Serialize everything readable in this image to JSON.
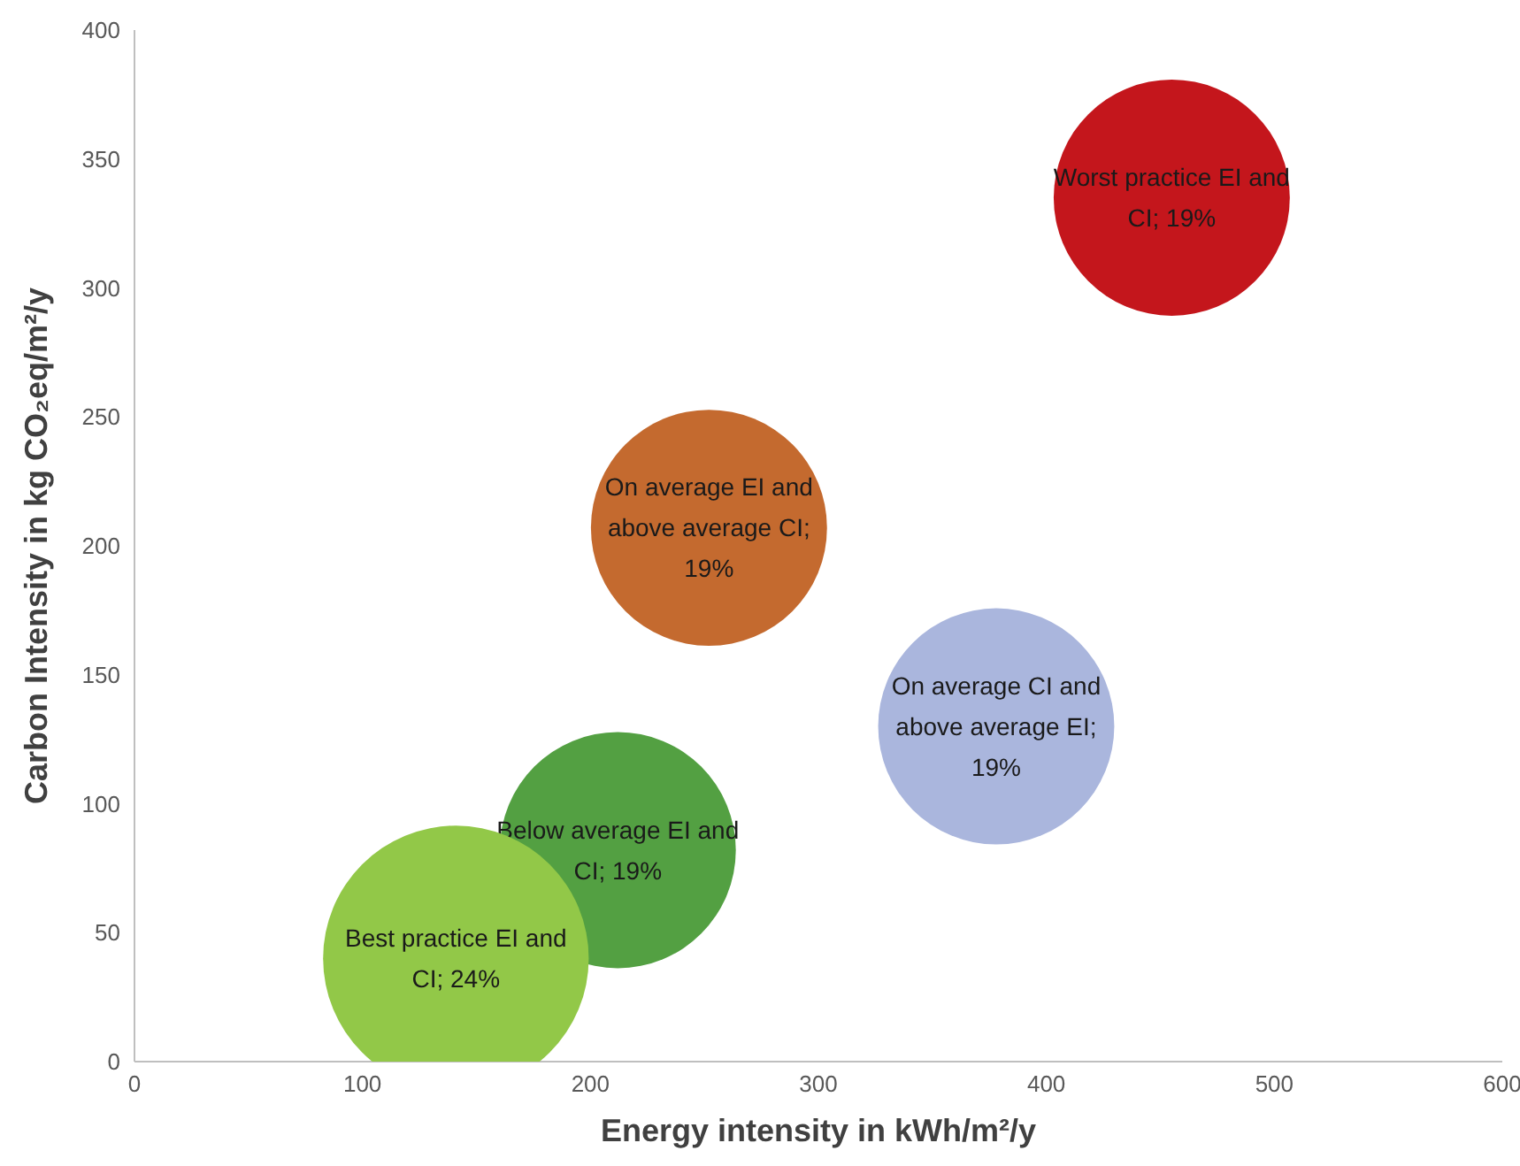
{
  "chart_data": {
    "type": "bubble",
    "xlabel": "Energy intensity in kWh/m²/y",
    "ylabel": "Carbon Intensity in kg CO₂eq/m²/y",
    "xlim": [
      0,
      600
    ],
    "xticks": [
      0,
      100,
      200,
      300,
      400,
      500,
      600
    ],
    "ylim": [
      0,
      400
    ],
    "yticks": [
      0,
      50,
      100,
      150,
      200,
      250,
      300,
      350,
      400
    ],
    "grid": false,
    "legend": false,
    "series": [
      {
        "name": "Worst practice EI and CI; 19%",
        "color": "#c4161c",
        "x": [
          455
        ],
        "values": [
          335
        ],
        "sizes": [
          0.79
        ]
      },
      {
        "name": "On average EI and above average CI; 19%",
        "color": "#c46a2f",
        "x": [
          252
        ],
        "values": [
          207
        ],
        "sizes": [
          0.79
        ]
      },
      {
        "name": "On average CI and above average EI; 19%",
        "color": "#aab6dd",
        "x": [
          378
        ],
        "values": [
          130
        ],
        "sizes": [
          0.79
        ]
      },
      {
        "name": "Below average EI and CI; 19%",
        "color": "#53a042",
        "x": [
          212
        ],
        "values": [
          82
        ],
        "sizes": [
          0.79
        ]
      },
      {
        "name": "Best practice EI and CI; 24%",
        "color": "#92c848",
        "x": [
          141
        ],
        "values": [
          40
        ],
        "sizes": [
          1
        ]
      }
    ]
  }
}
